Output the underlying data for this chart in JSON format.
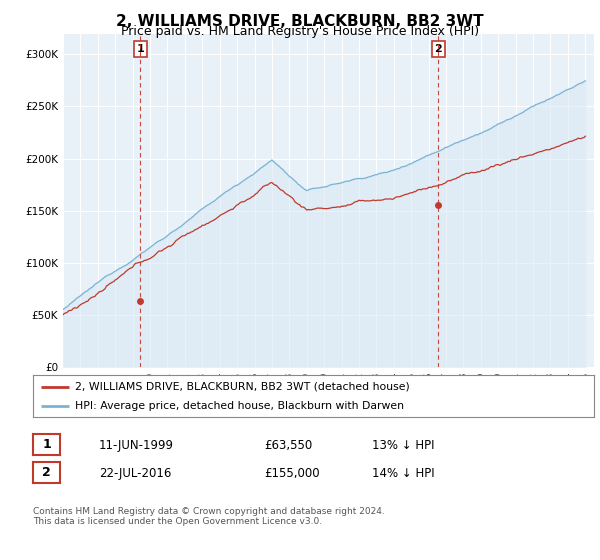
{
  "title": "2, WILLIAMS DRIVE, BLACKBURN, BB2 3WT",
  "subtitle": "Price paid vs. HM Land Registry's House Price Index (HPI)",
  "title_fontsize": 11,
  "subtitle_fontsize": 9,
  "ylim": [
    0,
    320000
  ],
  "yticks": [
    0,
    50000,
    100000,
    150000,
    200000,
    250000,
    300000
  ],
  "hpi_color": "#7ab3d4",
  "hpi_fill_color": "#daeaf4",
  "price_color": "#c0392b",
  "vline_color": "#c0392b",
  "marker1_year": 1999.44,
  "marker2_year": 2016.55,
  "marker1_price": 63550,
  "marker2_price": 155000,
  "legend_price_label": "2, WILLIAMS DRIVE, BLACKBURN, BB2 3WT (detached house)",
  "legend_hpi_label": "HPI: Average price, detached house, Blackburn with Darwen",
  "copyright_text": "Contains HM Land Registry data © Crown copyright and database right 2024.\nThis data is licensed under the Open Government Licence v3.0.",
  "background_color": "#ffffff",
  "chart_bg_color": "#e8f0f8",
  "grid_color": "#ffffff"
}
